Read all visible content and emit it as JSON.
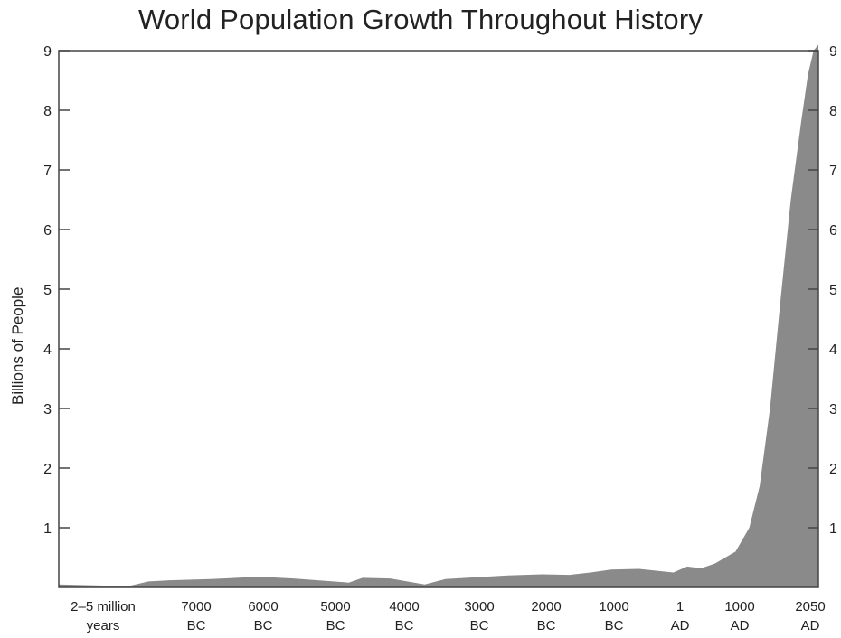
{
  "chart_data": {
    "type": "area",
    "title": "World Population Growth Throughout History",
    "xlabel": "",
    "ylabel": "Billions of People",
    "ylim": [
      0,
      9
    ],
    "yticks": [
      "1",
      "2",
      "3",
      "4",
      "5",
      "6",
      "7",
      "8",
      "9"
    ],
    "xticks": [
      {
        "line1": "2–5 million",
        "line2": "years"
      },
      {
        "line1": "7000",
        "line2": "BC"
      },
      {
        "line1": "6000",
        "line2": "BC"
      },
      {
        "line1": "5000",
        "line2": "BC"
      },
      {
        "line1": "4000",
        "line2": "BC"
      },
      {
        "line1": "3000",
        "line2": "BC"
      },
      {
        "line1": "2000",
        "line2": "BC"
      },
      {
        "line1": "1000",
        "line2": "BC"
      },
      {
        "line1": "1",
        "line2": "AD"
      },
      {
        "line1": "1000",
        "line2": "AD"
      },
      {
        "line1": "2050",
        "line2": "AD"
      }
    ],
    "grid": false,
    "fill_color": "#8a8a8a",
    "series": [
      {
        "x": [
          0,
          1,
          1.3,
          1.6,
          2.2,
          2.9,
          3.4,
          4.2,
          4.4,
          4.8,
          5.3,
          5.6,
          5.9,
          6.5,
          7.0,
          7.4,
          7.7,
          8.0,
          8.4,
          8.9,
          9.1,
          9.3,
          9.5,
          9.8,
          10.0,
          10.15,
          10.3,
          10.45,
          10.6,
          10.75,
          10.85,
          10.93,
          11.0
        ],
        "values": [
          0.05,
          0.02,
          0.1,
          0.12,
          0.14,
          0.18,
          0.15,
          0.08,
          0.16,
          0.15,
          0.05,
          0.14,
          0.16,
          0.2,
          0.22,
          0.21,
          0.25,
          0.3,
          0.31,
          0.25,
          0.35,
          0.32,
          0.4,
          0.6,
          1.0,
          1.7,
          3.0,
          4.8,
          6.5,
          7.8,
          8.6,
          9.0,
          9.1
        ]
      }
    ]
  }
}
